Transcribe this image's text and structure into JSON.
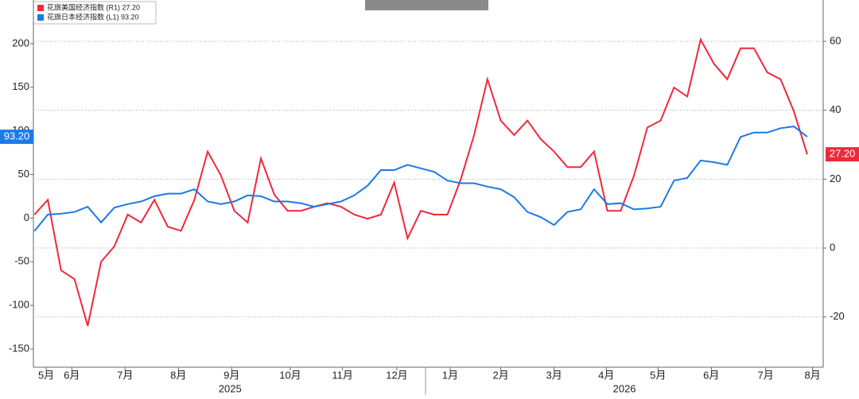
{
  "chart_data": {
    "type": "line",
    "x": [
      0.3,
      0.55,
      0.8,
      1.05,
      1.3,
      1.55,
      1.8,
      2.05,
      2.3,
      2.55,
      2.8,
      3.05,
      3.3,
      3.55,
      3.8,
      4.05,
      4.3,
      4.55,
      4.8,
      5.05,
      5.3,
      5.55,
      5.8,
      6.05,
      6.3,
      6.55,
      6.8,
      7.05,
      7.3,
      7.55,
      7.8,
      8.05,
      8.3,
      8.55,
      8.8,
      9.05,
      9.3,
      9.55,
      9.8,
      10.05,
      10.3,
      10.55,
      10.8,
      11.05,
      11.3,
      11.55,
      11.8,
      12.05,
      12.3,
      12.55,
      12.8,
      13.05,
      13.3,
      13.55,
      13.8,
      14.05,
      14.3,
      14.55,
      14.8
    ],
    "xlim": [
      0.28,
      15.1
    ],
    "xticks": [
      {
        "value": 0.52,
        "label": "5月"
      },
      {
        "value": 1,
        "label": "6月"
      },
      {
        "value": 2,
        "label": "7月"
      },
      {
        "value": 3,
        "label": "8月"
      },
      {
        "value": 4,
        "label": "9月"
      },
      {
        "value": 5.1,
        "label": "10月"
      },
      {
        "value": 6.08,
        "label": "11月"
      },
      {
        "value": 7.1,
        "label": "12月"
      },
      {
        "value": 8.1,
        "label": "1月"
      },
      {
        "value": 9.05,
        "label": "2月"
      },
      {
        "value": 10.05,
        "label": "3月"
      },
      {
        "value": 11.03,
        "label": "4月"
      },
      {
        "value": 12,
        "label": "5月"
      },
      {
        "value": 13,
        "label": "6月"
      },
      {
        "value": 14.02,
        "label": "7月"
      },
      {
        "value": 14.9,
        "label": "8月"
      }
    ],
    "year_labels": [
      {
        "value": 3.97,
        "label": "2025"
      },
      {
        "value": 11.37,
        "label": "2026"
      }
    ],
    "ylim": [
      -171,
      250
    ],
    "yticks": [
      -150,
      -100,
      -50,
      0,
      50,
      100,
      150,
      200
    ],
    "y2lim": [
      -34.6,
      72
    ],
    "y2ticks": [
      -20,
      0,
      20,
      40,
      60
    ],
    "grid": "y2",
    "series": [
      {
        "name": "花旗美国经济指数 (R1) 27.20",
        "color": "#f0283c",
        "axis": "y2",
        "end_label": {
          "value": 27.2,
          "label": "27.20"
        },
        "values": [
          9.7,
          14,
          -6.5,
          -9,
          -22.6,
          -4,
          0.5,
          9.7,
          7.4,
          14,
          6.2,
          5,
          14,
          28,
          21,
          10.8,
          7.4,
          26,
          15.5,
          10.8,
          10.8,
          12,
          13,
          12,
          9.7,
          8.5,
          9.7,
          19,
          2.8,
          10.8,
          9.7,
          9.7,
          20,
          32.8,
          49,
          37,
          32.8,
          37,
          31.6,
          28,
          23.5,
          23.5,
          28,
          10.8,
          10.8,
          21,
          35,
          37,
          46.6,
          44,
          60.5,
          53.5,
          49,
          58,
          58,
          51,
          49,
          39.7,
          27.2
        ]
      },
      {
        "name": "花旗日本经济指数 (L1) 93.20",
        "color": "#1a7ae8",
        "axis": "y",
        "end_label": {
          "value": 93.2,
          "label": "93.20"
        },
        "values": [
          -15,
          4,
          5,
          7,
          13,
          -5,
          12,
          16,
          19,
          25,
          28,
          28,
          33,
          19,
          16,
          19,
          26,
          25,
          19,
          19,
          17,
          13,
          16,
          19,
          26,
          37,
          55,
          55,
          61,
          57,
          53,
          43,
          40,
          40,
          36,
          33,
          24,
          7,
          1,
          -8,
          7,
          10,
          33,
          16,
          17,
          10,
          11,
          13,
          43,
          46,
          66,
          64,
          61,
          93,
          98,
          98,
          103,
          105,
          93.2
        ]
      }
    ]
  }
}
